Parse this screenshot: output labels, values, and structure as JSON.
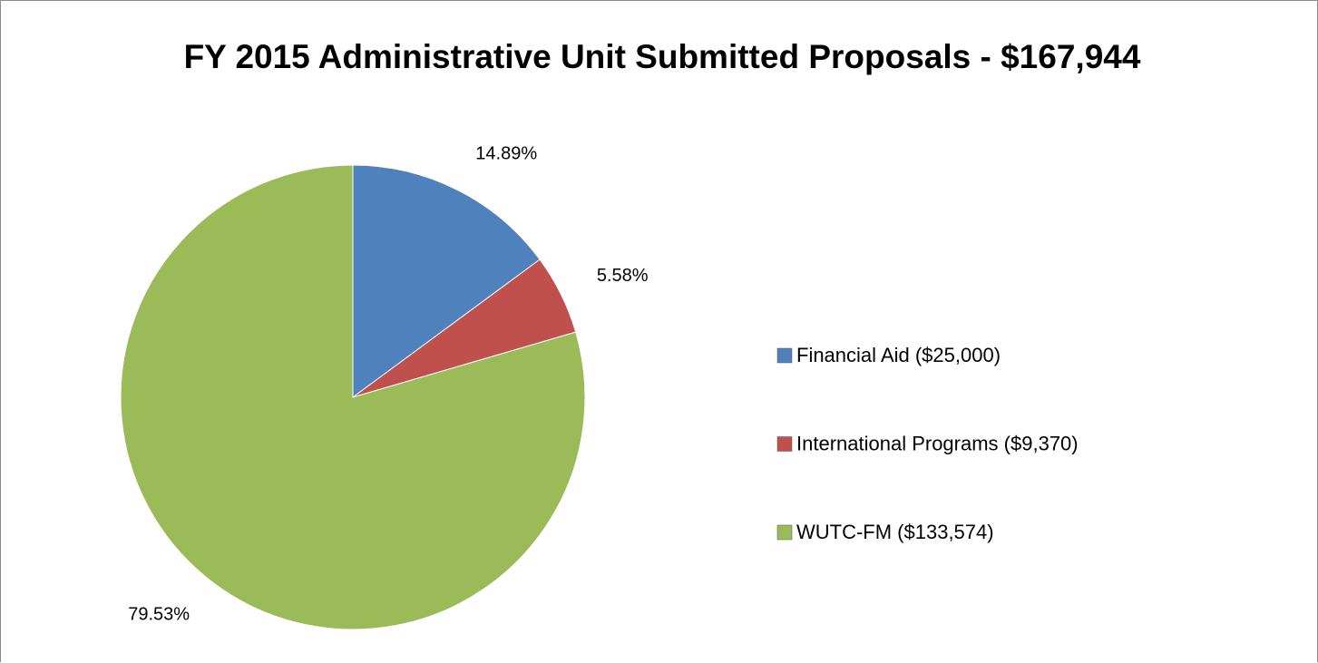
{
  "chart_data": {
    "type": "pie",
    "title": "FY 2015 Administrative Unit Submitted Proposals - $167,944",
    "categories": [
      "Financial Aid ($25,000)",
      "International Programs ($9,370)",
      "WUTC-FM ($133,574)"
    ],
    "values": [
      14.89,
      5.58,
      79.53
    ],
    "value_labels": [
      "14.89%",
      "5.58%",
      "79.53%"
    ],
    "colors": [
      "#4f81bd",
      "#c0504d",
      "#9bbb59"
    ],
    "legend": "right"
  }
}
